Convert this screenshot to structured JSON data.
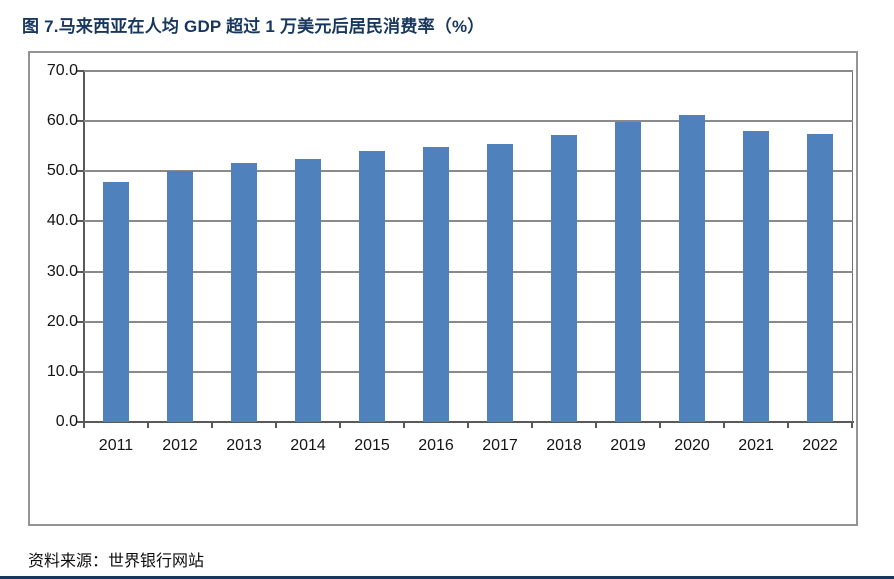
{
  "page": {
    "title": "图 7.马来西亚在人均 GDP 超过 1 万美元后居民消费率（%）",
    "source": "资料来源：世界银行网站"
  },
  "colors": {
    "bar": "#4F81BD",
    "gridline": "#8A8A8A",
    "axis": "#595959",
    "frame_border": "#949494",
    "title_text": "#17375E",
    "bottom_rule": "#17375E"
  },
  "chart_data": {
    "type": "bar",
    "title": "图 7.马来西亚在人均 GDP 超过 1 万美元后居民消费率（%）",
    "categories": [
      "2011",
      "2012",
      "2013",
      "2014",
      "2015",
      "2016",
      "2017",
      "2018",
      "2019",
      "2020",
      "2021",
      "2022"
    ],
    "values": [
      47.9,
      50.0,
      51.7,
      52.4,
      54.0,
      54.8,
      55.4,
      57.3,
      59.8,
      61.2,
      58.0,
      57.5
    ],
    "xlabel": "",
    "ylabel": "",
    "ylim": [
      0,
      70
    ],
    "ytick_interval": 10,
    "ytick_labels": [
      "0.0",
      "10.0",
      "20.0",
      "30.0",
      "40.0",
      "50.0",
      "60.0",
      "70.0"
    ],
    "grid": true,
    "legend": false,
    "source": "资料来源：世界银行网站"
  }
}
